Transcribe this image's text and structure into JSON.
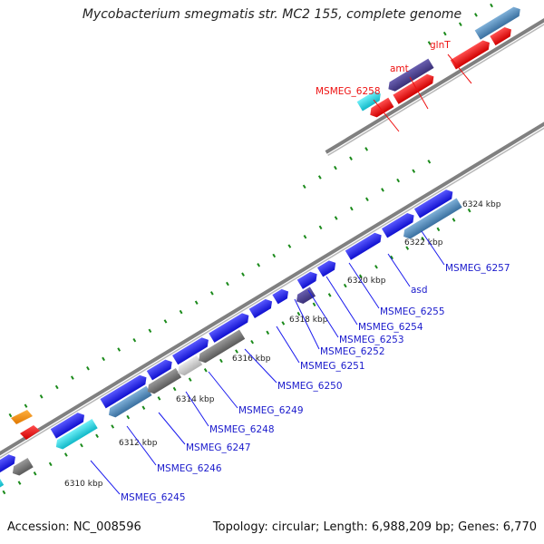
{
  "title": "Mycobacterium smegmatis str. MC2 155, complete genome",
  "footer": {
    "accession": "Accession: NC_008596",
    "summary": "Topology: circular; Length: 6,988,209 bp; Genes: 6,770"
  },
  "colors": {
    "blue_cds": "#1a1aee",
    "steel_cds": "#4682b4",
    "navy_cds": "#483d8b",
    "cyan_cds": "#20c8d8",
    "gray_cds": "#707070",
    "lightgray_cds": "#c8c8c8",
    "red_cds": "#ee1111",
    "orange_cds": "#f08c00",
    "backbone": "#808080",
    "tick": "#1a8a1a"
  },
  "ticks": [
    "6310 kbp",
    "6312 kbp",
    "6314 kbp",
    "6316 kbp",
    "6318 kbp",
    "6320 kbp",
    "6322 kbp",
    "6324 kbp"
  ],
  "genes_blue": [
    "MSMEG_6245",
    "MSMEG_6246",
    "MSMEG_6247",
    "MSMEG_6248",
    "MSMEG_6249",
    "MSMEG_6250",
    "MSMEG_6251",
    "MSMEG_6252",
    "MSMEG_6253",
    "MSMEG_6254",
    "MSMEG_6255",
    "asd",
    "MSMEG_6257"
  ],
  "genes_red": [
    "MSMEG_6258",
    "amt",
    "glnT"
  ]
}
